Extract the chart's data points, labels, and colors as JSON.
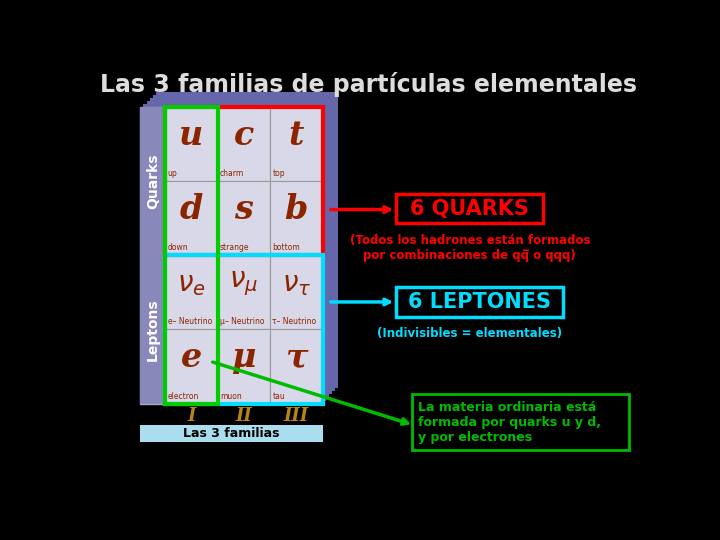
{
  "title": "Las 3 familias de partículas elementales",
  "title_color": "#DDDDDD",
  "bg_color": "#000000",
  "table_bg": "#8888BB",
  "cell_bg": "#D8D8E8",
  "quarks_row_border": "#FF0000",
  "leptons_row_border": "#00DDFF",
  "family1_border": "#00CC00",
  "bottom_label": "Las 3 familias",
  "box1_text": "6 QUARKS",
  "box1_color": "#FF0000",
  "box2_text": "6 LEPTONES",
  "box2_color": "#00DDFF",
  "box3_text": "La materia ordinaria está\nformada por quarks u y d,\ny por electrones",
  "box3_color": "#00BB00",
  "text1": "(Todos los hadrones están formados\npor combinaciones de qq̅ o qqq)",
  "text1_color": "#FF0000",
  "text2": "(Indivisibles = elementales)",
  "text2_color": "#00DDFF",
  "label_quarks": "Quarks",
  "label_leptons": "Leptons",
  "symbol_color": "#8B2500",
  "roman_color": "#B8860B",
  "layer_color": "#6666AA"
}
